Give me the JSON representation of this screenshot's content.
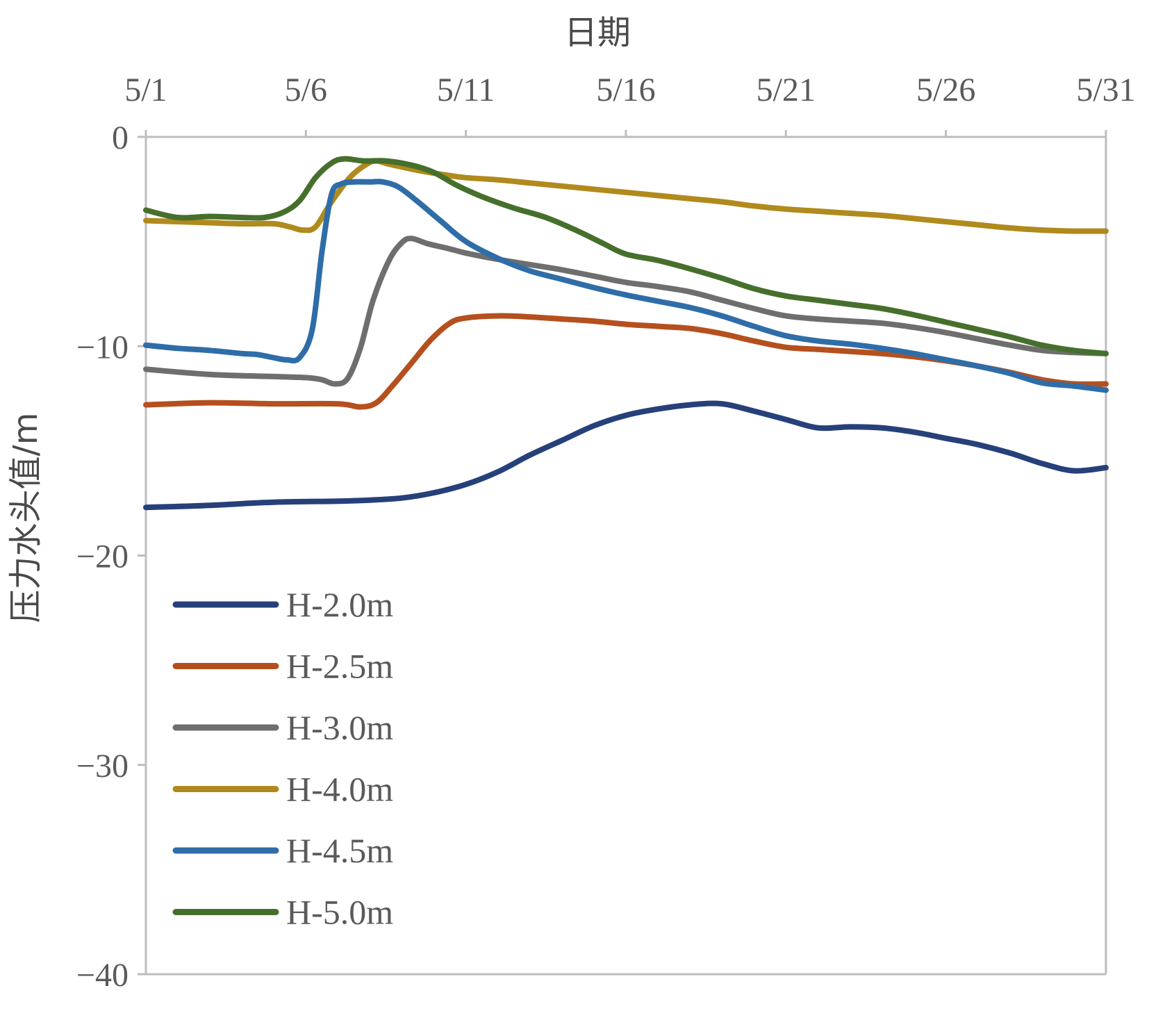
{
  "chart_data": {
    "type": "line",
    "title": "",
    "xlabel": "日期",
    "ylabel": "压力水头值/m",
    "x_axis_position": "top",
    "xlim": [
      1,
      31
    ],
    "ylim": [
      -40,
      0
    ],
    "x_ticks": [
      1,
      6,
      11,
      16,
      21,
      26,
      31
    ],
    "x_tick_labels": [
      "5/1",
      "5/6",
      "5/11",
      "5/16",
      "5/21",
      "5/26",
      "5/31"
    ],
    "y_ticks": [
      0,
      -10,
      -20,
      -30,
      -40
    ],
    "y_tick_labels": [
      "0",
      "−10",
      "−20",
      "−30",
      "−40"
    ],
    "legend_position": "bottom-left",
    "grid": false,
    "series": [
      {
        "name": "H-2.0m",
        "color": "#26407a",
        "points": [
          [
            1,
            -17.7
          ],
          [
            3,
            -17.6
          ],
          [
            5,
            -17.45
          ],
          [
            7,
            -17.4
          ],
          [
            8,
            -17.35
          ],
          [
            9,
            -17.25
          ],
          [
            10,
            -17.0
          ],
          [
            11,
            -16.6
          ],
          [
            12,
            -16.0
          ],
          [
            13,
            -15.2
          ],
          [
            14,
            -14.5
          ],
          [
            15,
            -13.8
          ],
          [
            16,
            -13.3
          ],
          [
            17,
            -13.0
          ],
          [
            18,
            -12.8
          ],
          [
            19,
            -12.75
          ],
          [
            20,
            -13.1
          ],
          [
            21,
            -13.5
          ],
          [
            22,
            -13.9
          ],
          [
            23,
            -13.85
          ],
          [
            24,
            -13.9
          ],
          [
            25,
            -14.1
          ],
          [
            26,
            -14.4
          ],
          [
            27,
            -14.7
          ],
          [
            28,
            -15.1
          ],
          [
            29,
            -15.6
          ],
          [
            30,
            -15.95
          ],
          [
            31,
            -15.8
          ]
        ]
      },
      {
        "name": "H-2.5m",
        "color": "#b5501e",
        "points": [
          [
            1,
            -12.8
          ],
          [
            3,
            -12.7
          ],
          [
            5,
            -12.75
          ],
          [
            7,
            -12.75
          ],
          [
            7.7,
            -12.9
          ],
          [
            8.2,
            -12.7
          ],
          [
            8.7,
            -11.9
          ],
          [
            9.3,
            -10.8
          ],
          [
            9.9,
            -9.7
          ],
          [
            10.5,
            -8.9
          ],
          [
            11,
            -8.65
          ],
          [
            12,
            -8.55
          ],
          [
            13,
            -8.6
          ],
          [
            14,
            -8.7
          ],
          [
            15,
            -8.8
          ],
          [
            16,
            -8.95
          ],
          [
            17,
            -9.05
          ],
          [
            18,
            -9.15
          ],
          [
            19,
            -9.4
          ],
          [
            20,
            -9.75
          ],
          [
            21,
            -10.05
          ],
          [
            22,
            -10.15
          ],
          [
            23,
            -10.25
          ],
          [
            24,
            -10.35
          ],
          [
            25,
            -10.5
          ],
          [
            26,
            -10.7
          ],
          [
            27,
            -10.95
          ],
          [
            28,
            -11.25
          ],
          [
            29,
            -11.6
          ],
          [
            30,
            -11.8
          ],
          [
            31,
            -11.8
          ]
        ]
      },
      {
        "name": "H-3.0m",
        "color": "#6e6e6e",
        "points": [
          [
            1,
            -11.1
          ],
          [
            3,
            -11.35
          ],
          [
            5,
            -11.45
          ],
          [
            6,
            -11.5
          ],
          [
            6.5,
            -11.6
          ],
          [
            6.9,
            -11.8
          ],
          [
            7.3,
            -11.55
          ],
          [
            7.7,
            -10.1
          ],
          [
            8.1,
            -7.8
          ],
          [
            8.6,
            -5.9
          ],
          [
            9,
            -5.05
          ],
          [
            9.3,
            -4.85
          ],
          [
            9.8,
            -5.1
          ],
          [
            10.5,
            -5.35
          ],
          [
            11,
            -5.55
          ],
          [
            12,
            -5.85
          ],
          [
            13,
            -6.1
          ],
          [
            14,
            -6.35
          ],
          [
            15,
            -6.65
          ],
          [
            16,
            -6.95
          ],
          [
            17,
            -7.15
          ],
          [
            18,
            -7.4
          ],
          [
            19,
            -7.8
          ],
          [
            20,
            -8.2
          ],
          [
            21,
            -8.55
          ],
          [
            22,
            -8.7
          ],
          [
            23,
            -8.8
          ],
          [
            24,
            -8.9
          ],
          [
            25,
            -9.1
          ],
          [
            26,
            -9.35
          ],
          [
            27,
            -9.65
          ],
          [
            28,
            -9.95
          ],
          [
            29,
            -10.2
          ],
          [
            30,
            -10.3
          ],
          [
            31,
            -10.35
          ]
        ]
      },
      {
        "name": "H-4.0m",
        "color": "#b08a1c",
        "points": [
          [
            1,
            -4.0
          ],
          [
            2,
            -4.05
          ],
          [
            3,
            -4.1
          ],
          [
            4,
            -4.15
          ],
          [
            5,
            -4.15
          ],
          [
            5.5,
            -4.3
          ],
          [
            5.9,
            -4.45
          ],
          [
            6.3,
            -4.3
          ],
          [
            6.8,
            -3.1
          ],
          [
            7.4,
            -1.9
          ],
          [
            7.9,
            -1.3
          ],
          [
            8.2,
            -1.15
          ],
          [
            8.6,
            -1.3
          ],
          [
            9.5,
            -1.6
          ],
          [
            10.5,
            -1.85
          ],
          [
            11,
            -1.95
          ],
          [
            12,
            -2.05
          ],
          [
            13,
            -2.2
          ],
          [
            14,
            -2.35
          ],
          [
            15,
            -2.5
          ],
          [
            16,
            -2.65
          ],
          [
            17,
            -2.8
          ],
          [
            18,
            -2.95
          ],
          [
            19,
            -3.1
          ],
          [
            20,
            -3.3
          ],
          [
            21,
            -3.45
          ],
          [
            22,
            -3.55
          ],
          [
            23,
            -3.65
          ],
          [
            24,
            -3.75
          ],
          [
            25,
            -3.9
          ],
          [
            26,
            -4.05
          ],
          [
            27,
            -4.2
          ],
          [
            28,
            -4.35
          ],
          [
            29,
            -4.45
          ],
          [
            30,
            -4.5
          ],
          [
            31,
            -4.5
          ]
        ]
      },
      {
        "name": "H-4.5m",
        "color": "#2f6da8",
        "points": [
          [
            1,
            -9.95
          ],
          [
            2,
            -10.1
          ],
          [
            3,
            -10.2
          ],
          [
            4,
            -10.35
          ],
          [
            4.5,
            -10.4
          ],
          [
            5,
            -10.55
          ],
          [
            5.4,
            -10.65
          ],
          [
            5.8,
            -10.55
          ],
          [
            6.2,
            -9.2
          ],
          [
            6.5,
            -5.5
          ],
          [
            6.8,
            -2.75
          ],
          [
            7.1,
            -2.25
          ],
          [
            7.5,
            -2.15
          ],
          [
            8,
            -2.15
          ],
          [
            8.4,
            -2.15
          ],
          [
            8.9,
            -2.4
          ],
          [
            9.5,
            -3.1
          ],
          [
            10.2,
            -4.0
          ],
          [
            11,
            -5.0
          ],
          [
            12,
            -5.8
          ],
          [
            13,
            -6.4
          ],
          [
            14,
            -6.8
          ],
          [
            15,
            -7.2
          ],
          [
            16,
            -7.55
          ],
          [
            17,
            -7.85
          ],
          [
            18,
            -8.15
          ],
          [
            19,
            -8.55
          ],
          [
            20,
            -9.05
          ],
          [
            21,
            -9.5
          ],
          [
            22,
            -9.75
          ],
          [
            23,
            -9.9
          ],
          [
            24,
            -10.1
          ],
          [
            25,
            -10.35
          ],
          [
            26,
            -10.65
          ],
          [
            27,
            -10.95
          ],
          [
            28,
            -11.3
          ],
          [
            29,
            -11.75
          ],
          [
            30,
            -11.9
          ],
          [
            31,
            -12.1
          ]
        ]
      },
      {
        "name": "H-5.0m",
        "color": "#466f2c",
        "points": [
          [
            1,
            -3.5
          ],
          [
            2,
            -3.85
          ],
          [
            3,
            -3.8
          ],
          [
            4,
            -3.85
          ],
          [
            4.7,
            -3.85
          ],
          [
            5.3,
            -3.6
          ],
          [
            5.8,
            -3.05
          ],
          [
            6.3,
            -1.95
          ],
          [
            6.8,
            -1.25
          ],
          [
            7.2,
            -1.05
          ],
          [
            7.8,
            -1.15
          ],
          [
            8.5,
            -1.15
          ],
          [
            9.3,
            -1.35
          ],
          [
            10,
            -1.7
          ],
          [
            10.7,
            -2.3
          ],
          [
            11.5,
            -2.85
          ],
          [
            12.5,
            -3.4
          ],
          [
            13.5,
            -3.85
          ],
          [
            14.5,
            -4.5
          ],
          [
            15.3,
            -5.1
          ],
          [
            16,
            -5.6
          ],
          [
            17,
            -5.9
          ],
          [
            18,
            -6.3
          ],
          [
            19,
            -6.75
          ],
          [
            20,
            -7.25
          ],
          [
            21,
            -7.6
          ],
          [
            22,
            -7.8
          ],
          [
            23,
            -8.0
          ],
          [
            24,
            -8.2
          ],
          [
            25,
            -8.5
          ],
          [
            26,
            -8.85
          ],
          [
            27,
            -9.2
          ],
          [
            28,
            -9.55
          ],
          [
            29,
            -9.95
          ],
          [
            30,
            -10.2
          ],
          [
            31,
            -10.35
          ]
        ]
      }
    ]
  }
}
